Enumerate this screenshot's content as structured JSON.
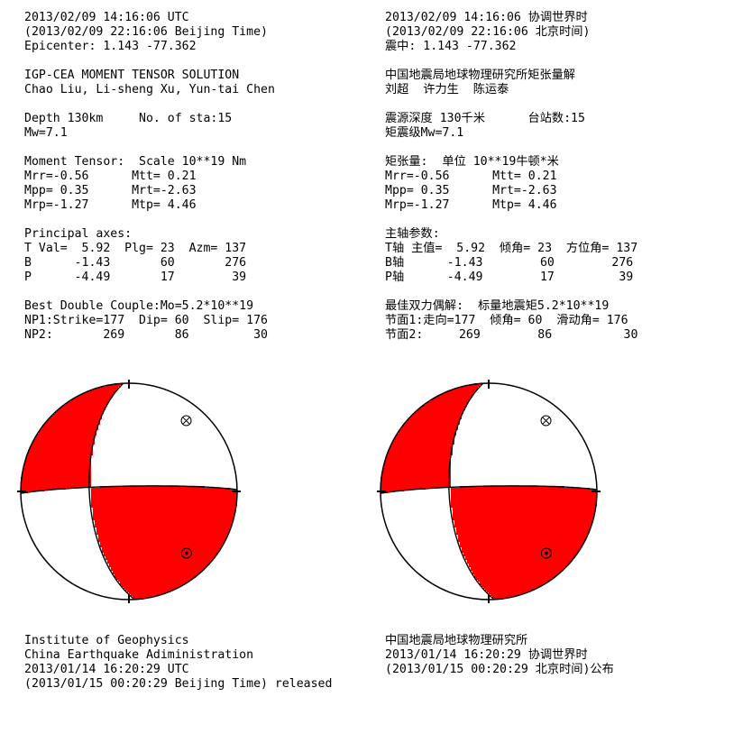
{
  "english": {
    "origin_utc": "2013/02/09 14:16:06 UTC",
    "origin_local": "(2013/02/09 22:16:06 Beijing Time)",
    "epicenter": "Epicenter: 1.143 -77.362",
    "solution_title": "IGP-CEA MOMENT TENSOR SOLUTION",
    "authors": "Chao Liu, Li-sheng Xu, Yun-tai Chen",
    "depth_sta": "Depth 130km     No. of sta:15",
    "mw": "Mw=7.1",
    "mt_header": "Moment Tensor:  Scale 10**19 Nm",
    "mt_row1": "Mrr=-0.56      Mtt= 0.21",
    "mt_row2": "Mpp= 0.35      Mrt=-2.63",
    "mt_row3": "Mrp=-1.27      Mtp= 4.46",
    "axes_header": "Principal axes:",
    "axis_t": "T Val=  5.92  Plg= 23  Azm= 137",
    "axis_b": "B      -1.43       60       276",
    "axis_p": "P      -4.49       17        39",
    "dc_header": "Best Double Couple:Mo=5.2*10**19",
    "np1": "NP1:Strike=177  Dip= 60  Slip= 176",
    "np2": "NP2:       269       86         30",
    "footer": [
      "Institute of Geophysics",
      "China Earthquake Adiministration",
      "2013/01/14 16:20:29 UTC",
      "(2013/01/15 00:20:29 Beijing Time) released"
    ]
  },
  "chinese": {
    "origin_utc": "2013/02/09 14:16:06 协调世界时",
    "origin_local": "(2013/02/09 22:16:06 北京时间)",
    "epicenter": "震中: 1.143 -77.362",
    "solution_title": "中国地震局地球物理研究所矩张量解",
    "authors": "刘超  许力生  陈运泰",
    "depth_sta": "震源深度 130千米      台站数:15",
    "mw": "矩震级Mw=7.1",
    "mt_header": "矩张量:  单位 10**19牛顿*米",
    "mt_row1": "Mrr=-0.56      Mtt= 0.21",
    "mt_row2": "Mpp= 0.35      Mrt=-2.63",
    "mt_row3": "Mrp=-1.27      Mtp= 4.46",
    "axes_header": "主轴参数:",
    "axis_t": "T轴 主值=  5.92  倾角= 23  方位角= 137",
    "axis_b": "B轴      -1.43        60        276",
    "axis_p": "P轴      -4.49        17         39",
    "dc_header": "最佳双力偶解:  标量地震矩5.2*10**19",
    "np1": "节面1:走向=177  倾角= 60  滑动角= 176",
    "np2": "节面2:     269        86          30",
    "footer": [
      "中国地震局地球物理研究所",
      "2013/01/14 16:20:29 协调世界时",
      "(2013/01/15 00:20:29 北京时间)公布"
    ]
  },
  "beachball": {
    "np1": {
      "strike": 177,
      "dip": 60,
      "rake": 176
    },
    "np2": {
      "strike": 269,
      "dip": 86,
      "rake": 30
    },
    "t_axis": {
      "plunge": 23,
      "azimuth": 137
    },
    "b_axis": {
      "plunge": 60,
      "azimuth": 276
    },
    "p_axis": {
      "plunge": 17,
      "azimuth": 39
    },
    "colors": {
      "compression": "#ff0000",
      "dilatation": "#ffffff",
      "outline": "#000000"
    }
  }
}
